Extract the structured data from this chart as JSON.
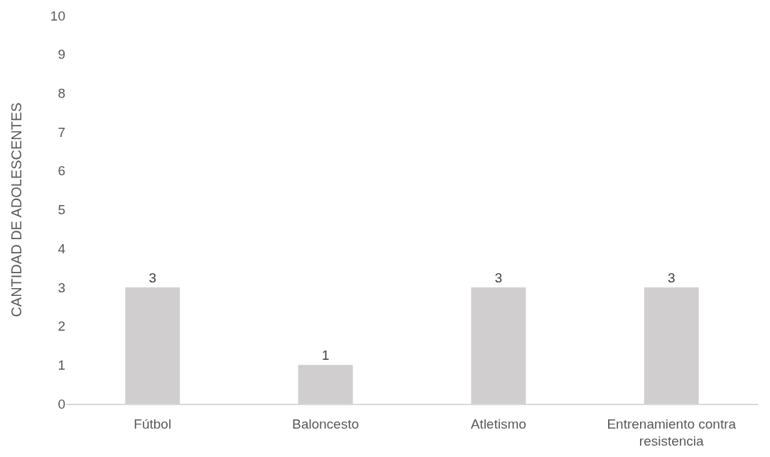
{
  "chart_data": {
    "type": "bar",
    "categories": [
      "Fútbol",
      "Baloncesto",
      "Atletismo",
      "Entrenamiento contra resistencia"
    ],
    "values": [
      3,
      1,
      3,
      3
    ],
    "color": "#d0cece",
    "ylabel": "CANTIDAD DE ADOLESCENTES",
    "ylim": [
      0,
      10
    ],
    "yticks": [
      0,
      1,
      2,
      3,
      4,
      5,
      6,
      7,
      8,
      9,
      10
    ],
    "data_labels": true
  }
}
